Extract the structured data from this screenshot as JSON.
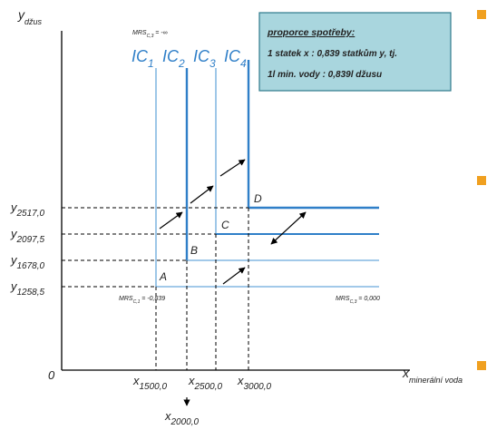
{
  "colors": {
    "curve_blue": "#2f7fc8",
    "curve_thin": "#6aa9dc",
    "box_fill": "#a9d6de",
    "box_border": "#2e7a8c",
    "bullet_orange": "#f0a020",
    "axis": "#000000"
  },
  "axes": {
    "y_main": "y",
    "y_sub": "džus",
    "x_main": "x",
    "x_sub": "minerální voda",
    "origin": "0"
  },
  "curve_labels": [
    {
      "main": "IC",
      "sub": "1"
    },
    {
      "main": "IC",
      "sub": "2"
    },
    {
      "main": "IC",
      "sub": "3"
    },
    {
      "main": "IC",
      "sub": "4"
    }
  ],
  "corner_points": [
    {
      "label": "A",
      "x": 1500.0,
      "y": 1258.5
    },
    {
      "label": "B",
      "x": 2000.0,
      "y": 1678.0
    },
    {
      "label": "C",
      "x": 2500.0,
      "y": 2097.5
    },
    {
      "label": "D",
      "x": 3000.0,
      "y": 2517.0
    }
  ],
  "y_ticks": [
    {
      "main": "y",
      "sub": "2517,0"
    },
    {
      "main": "y",
      "sub": "2097,5"
    },
    {
      "main": "y",
      "sub": "1678,0"
    },
    {
      "main": "y",
      "sub": "1258,5"
    }
  ],
  "x_ticks": [
    {
      "main": "x",
      "sub": "1500,0"
    },
    {
      "main": "x",
      "sub": "2500,0"
    },
    {
      "main": "x",
      "sub": "3000,0"
    }
  ],
  "x_tick_below": {
    "main": "x",
    "sub": "2000,0"
  },
  "mrs_labels": {
    "top": {
      "main": "MRS",
      "sub": "C,3",
      "value": " = -∞"
    },
    "left": {
      "main": "MRS",
      "sub": "C,1",
      "value": " = -0,839"
    },
    "right": {
      "main": "MRS",
      "sub": "C,3",
      "value": " = 0,000"
    }
  },
  "info_box": {
    "title": "proporce spotřeby:",
    "line1": "1 statek x  : 0,839 statkům y, tj.",
    "line2": "1l min. vody : 0,839l džusu"
  }
}
